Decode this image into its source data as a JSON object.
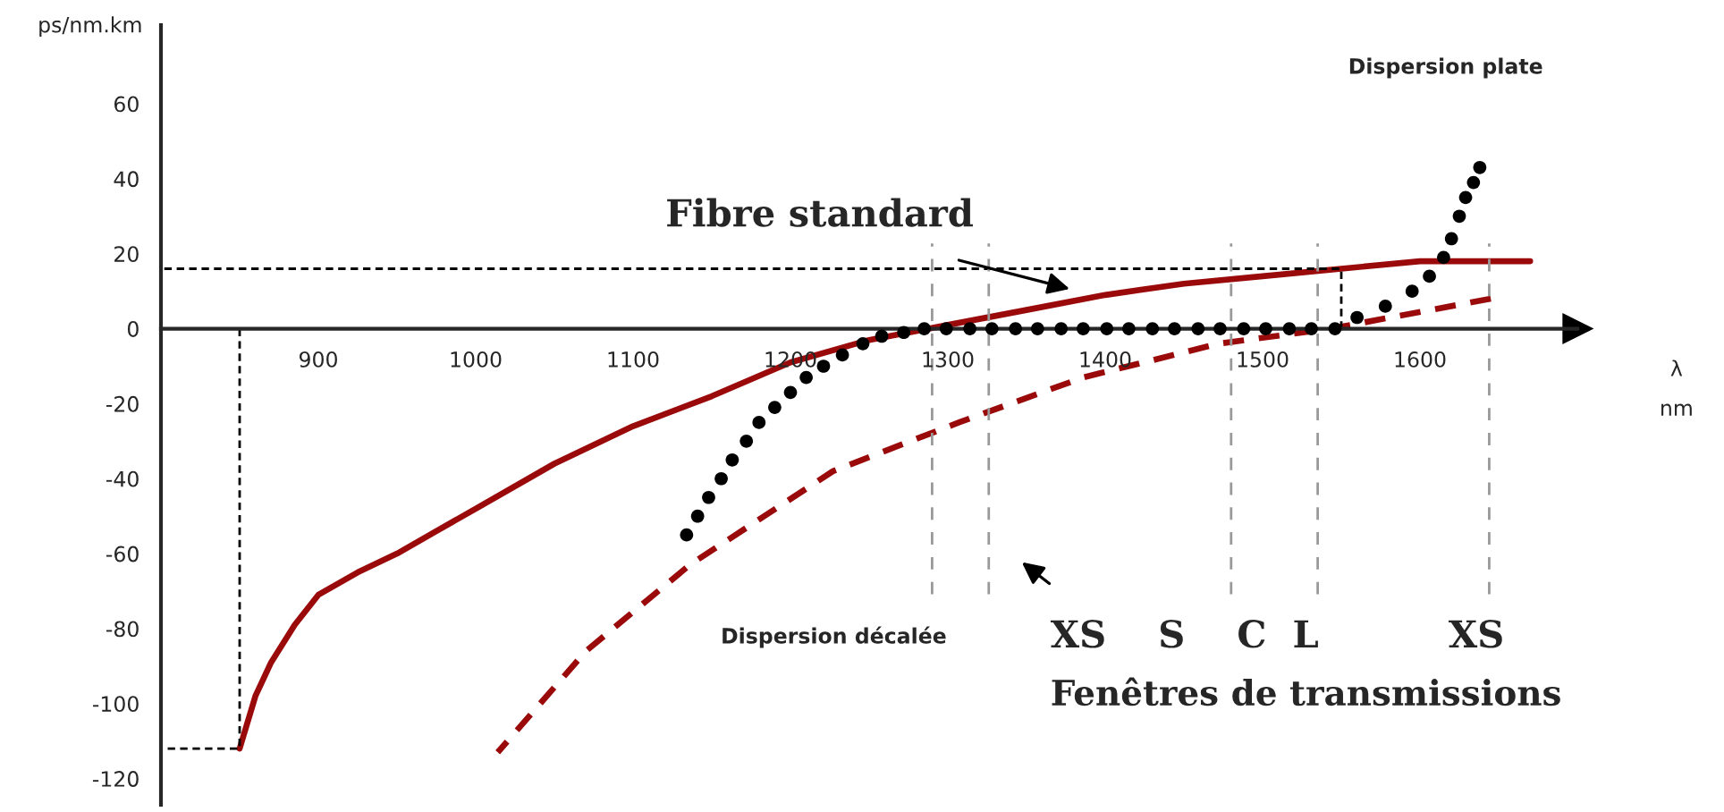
{
  "chart_data": {
    "type": "line",
    "xlabel": "λ\nnm",
    "ylabel": "ps/nm.km",
    "xlim": [
      800,
      1700
    ],
    "ylim": [
      -127,
      81
    ],
    "xticks": [
      900,
      1000,
      1100,
      1200,
      1300,
      1400,
      1500,
      1600
    ],
    "yticks": [
      -120,
      -100,
      -80,
      -60,
      -40,
      -20,
      0,
      20,
      40,
      60
    ],
    "grid": false,
    "series": [
      {
        "color": "#9b0a0a",
        "line_style": "solid",
        "x": [
          850,
          860,
          870,
          885,
          900,
          925,
          950,
          975,
          1000,
          1050,
          1100,
          1150,
          1200,
          1250,
          1300,
          1350,
          1400,
          1450,
          1500,
          1550,
          1600,
          1670
        ],
        "values": [
          -112,
          -98,
          -89,
          -79,
          -71,
          -65,
          -60,
          -54,
          -48,
          -36,
          -26,
          -18,
          -9,
          -3,
          1,
          5,
          9,
          12,
          14,
          16,
          18,
          18
        ]
      },
      {
        "color": "#9b0a0a",
        "line_style": "dashed",
        "x": [
          1014,
          1070,
          1136,
          1227,
          1307,
          1386,
          1472,
          1543,
          1645
        ],
        "values": [
          -113,
          -86,
          -63,
          -38,
          -25,
          -13,
          -4,
          0,
          8
        ]
      },
      {
        "type": "scatter",
        "color": "#000000",
        "marker": "circle",
        "x": [
          1134,
          1141,
          1148,
          1156,
          1163,
          1172,
          1180,
          1190,
          1200,
          1210,
          1221,
          1233,
          1246,
          1258,
          1272,
          1285,
          1299,
          1314,
          1328,
          1343,
          1357,
          1372,
          1386,
          1401,
          1415,
          1430,
          1444,
          1459,
          1473,
          1488,
          1502,
          1517,
          1531,
          1546,
          1560,
          1578,
          1595,
          1606,
          1615,
          1620,
          1625,
          1629,
          1634,
          1638
        ],
        "values": [
          -55,
          -50,
          -45,
          -40,
          -35,
          -30,
          -25,
          -21,
          -17,
          -13,
          -10,
          -7,
          -4,
          -2,
          -1,
          0,
          0,
          0,
          0,
          0,
          0,
          0,
          0,
          0,
          0,
          0,
          0,
          0,
          0,
          0,
          0,
          0,
          0,
          0,
          3,
          6,
          10,
          14,
          19,
          24,
          30,
          35,
          39,
          43
        ]
      },
      {
        "color": "#000000",
        "line_style": "dashed",
        "x": [
          800,
          1550,
          1550
        ],
        "values": [
          16,
          16,
          0
        ]
      },
      {
        "color": "#000000",
        "line_style": "dashed",
        "x": [
          800,
          850,
          850
        ],
        "values": [
          -112,
          -112,
          0
        ]
      }
    ],
    "ref_lines": [
      {
        "axis": "x",
        "value": 1290,
        "color": "#999999",
        "line_style": "dashed"
      },
      {
        "axis": "x",
        "value": 1326,
        "color": "#999999",
        "line_style": "dashed"
      },
      {
        "axis": "x",
        "value": 1480,
        "color": "#999999",
        "line_style": "dashed"
      },
      {
        "axis": "x",
        "value": 1535,
        "color": "#999999",
        "line_style": "dashed"
      },
      {
        "axis": "x",
        "value": 1644,
        "color": "#999999",
        "line_style": "dashed"
      }
    ],
    "annotations": [
      "Fibre standard",
      "Dispersion plate",
      "Dispersion décalée",
      "XS    S    C  L          XS",
      "Fenêtres de transmissions"
    ]
  }
}
